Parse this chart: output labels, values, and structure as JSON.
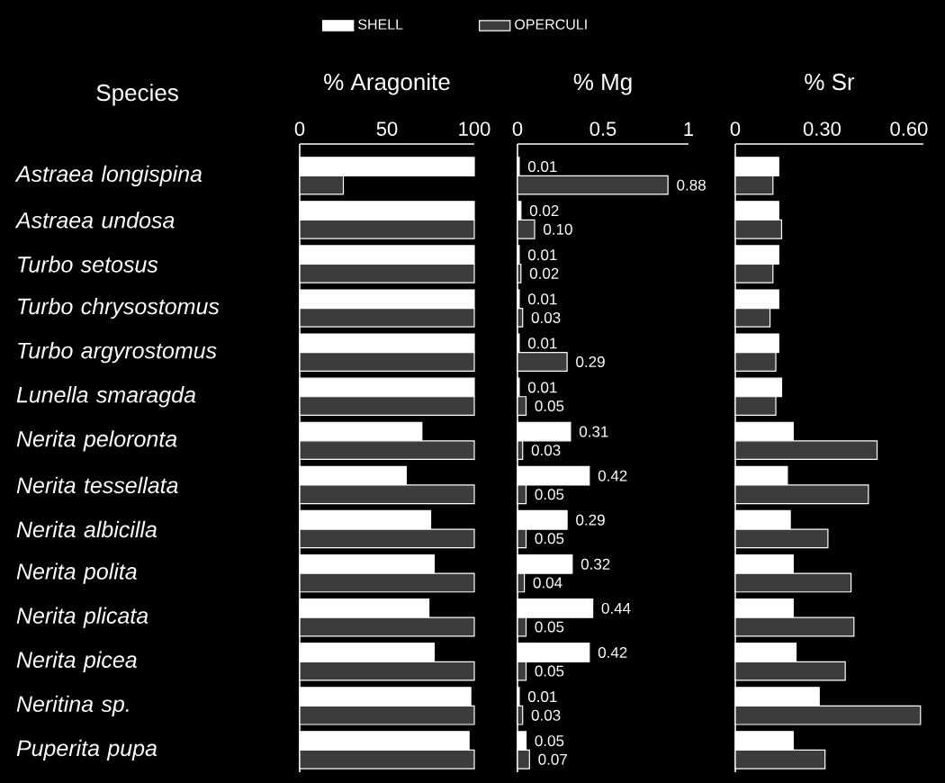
{
  "chart_data": [
    {
      "type": "bar",
      "orientation": "horizontal",
      "title": "% Aragonite",
      "ylabel": "Species",
      "legend": "top",
      "categories": [
        "*Astraea longispina*",
        "*Astraea undosa*",
        "*Turbo setosus*",
        "*Turbo chrysostomus*",
        "*Turbo argyrostomus*",
        "*Lunella smaragda*",
        "*Nerita peloronta*",
        "*Nerita tessellata*",
        "*Nerita albicilla*",
        "*Nerita polita*",
        "*Nerita plicata*",
        "*Nerita picea*",
        "*Neritina sp.*",
        "*Puperita pupa*"
      ],
      "xlim": [
        0,
        100
      ],
      "xticks": [
        0,
        50,
        100
      ],
      "series": [
        {
          "name": "SHELL",
          "color": "#ffffff",
          "values": [
            100,
            100,
            100,
            100,
            100,
            100,
            70,
            61,
            75,
            77,
            74,
            77,
            98,
            97
          ]
        },
        {
          "name": "OPERCULI",
          "color": "#3c3c3c",
          "values": [
            25,
            100,
            100,
            100,
            100,
            100,
            100,
            100,
            100,
            100,
            100,
            100,
            100,
            100
          ]
        }
      ]
    },
    {
      "type": "bar",
      "orientation": "horizontal",
      "title": "% Mg",
      "tick_labels": "x",
      "categories": [
        null,
        null,
        null,
        null,
        null,
        null,
        null,
        null,
        null,
        null,
        null,
        null,
        null,
        null
      ],
      "xlim": [
        0,
        1
      ],
      "xticks": [
        0,
        0.5,
        1
      ],
      "series": [
        {
          "color": "#ffffff",
          "values": [
            0.01,
            0.02,
            0.01,
            0.01,
            0.01,
            0.01,
            0.31,
            0.42,
            0.29,
            0.32,
            0.44,
            0.42,
            0.01,
            0.05
          ],
          "value_labels": [
            "0.01",
            "0.02",
            "0.01",
            "0.01",
            "0.01",
            "0.01",
            "0.31",
            "0.42",
            "0.29",
            "0.32",
            "0.44",
            "0.42",
            "0.01",
            "0.05"
          ]
        },
        {
          "color": "#3c3c3c",
          "values": [
            0.88,
            0.1,
            0.02,
            0.03,
            0.29,
            0.05,
            0.03,
            0.05,
            0.05,
            0.04,
            0.05,
            0.05,
            0.03,
            0.07
          ],
          "value_labels": [
            "0.88",
            "0.10",
            "0.02",
            "0.03",
            "0.29",
            "0.05",
            "0.03",
            "0.05",
            "0.05",
            "0.04",
            "0.05",
            "0.05",
            "0.03",
            "0.07"
          ]
        }
      ]
    },
    {
      "type": "bar",
      "orientation": "horizontal",
      "title": "% Sr",
      "tick_labels": "x",
      "categories": [
        null,
        null,
        null,
        null,
        null,
        null,
        null,
        null,
        null,
        null,
        null,
        null,
        null,
        null
      ],
      "xlim": [
        0,
        0.65
      ],
      "xticks": [
        0,
        {
          "value": 0.3,
          "label": "0.30"
        },
        {
          "value": 0.6,
          "label": "0.60"
        }
      ],
      "series": [
        {
          "color": "#ffffff",
          "values": [
            0.15,
            0.15,
            0.15,
            0.15,
            0.15,
            0.16,
            0.2,
            0.18,
            0.19,
            0.2,
            0.2,
            0.21,
            0.29,
            0.2
          ]
        },
        {
          "color": "#3c3c3c",
          "values": [
            0.13,
            0.16,
            0.13,
            0.12,
            0.14,
            0.14,
            0.49,
            0.46,
            0.32,
            0.4,
            0.41,
            0.38,
            0.64,
            0.31
          ]
        }
      ]
    }
  ]
}
